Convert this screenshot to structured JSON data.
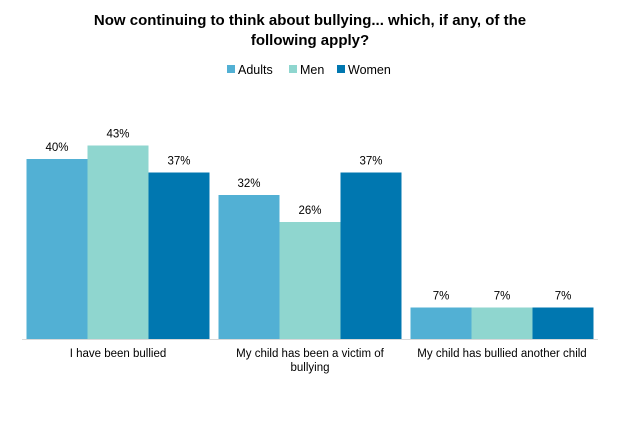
{
  "chart_data": {
    "type": "bar",
    "title": "Now continuing to think about bullying... which, if any, of the following apply?",
    "title_lines": [
      "Now continuing to think about bullying... which, if any, of the",
      "following apply?"
    ],
    "categories": [
      "I have been bullied",
      "My child has been a victim of bullying",
      "My child has bullied another child"
    ],
    "category_lines": [
      [
        "I have been bullied"
      ],
      [
        "My child has been a victim of",
        "bullying"
      ],
      [
        "My child has bullied another child"
      ]
    ],
    "series": [
      {
        "name": "Adults",
        "color": "#52b0d4",
        "values": [
          40,
          32,
          7
        ],
        "labels": [
          "40%",
          "32%",
          "7%"
        ]
      },
      {
        "name": "Men",
        "color": "#8fd6cf",
        "values": [
          43,
          26,
          7
        ],
        "labels": [
          "43%",
          "26%",
          "7%"
        ]
      },
      {
        "name": "Women",
        "color": "#0077b0",
        "values": [
          37,
          37,
          7
        ],
        "labels": [
          "37%",
          "37%",
          "7%"
        ]
      }
    ],
    "ylim": [
      0,
      100
    ],
    "xlabel": "",
    "ylabel": "",
    "grid": false,
    "legend_position": "top-center",
    "baseline_color": "#d9d9d9"
  }
}
